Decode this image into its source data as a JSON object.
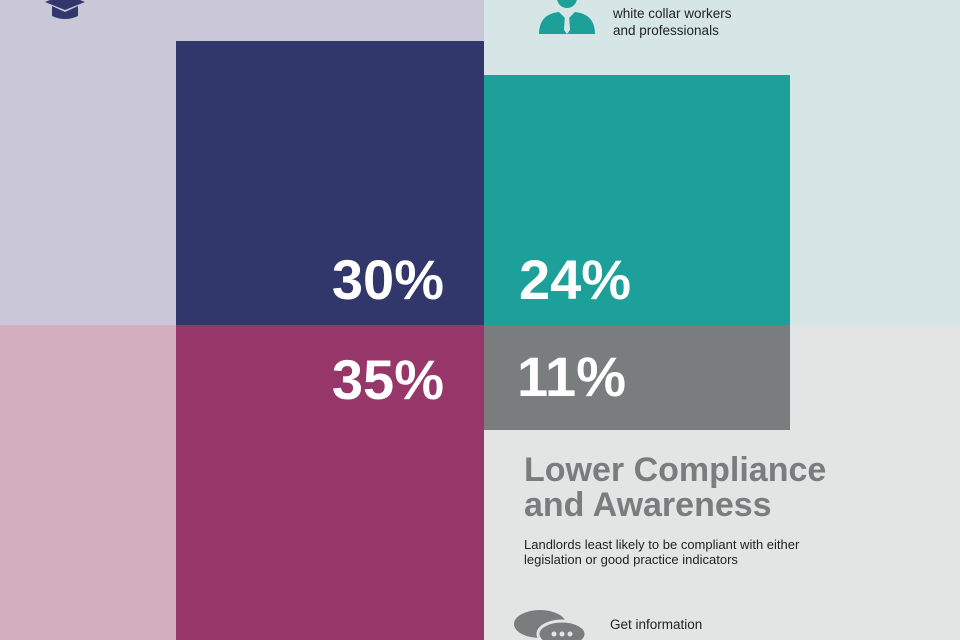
{
  "quadrants": [
    {
      "value": "30%"
    },
    {
      "value": "24%"
    },
    {
      "value": "35%"
    },
    {
      "value": "11%"
    }
  ],
  "top_right_caption": [
    "white collar workers",
    "and professionals"
  ],
  "bottom_right": {
    "heading_lines": [
      "Lower Compliance",
      "and Awareness"
    ],
    "body_lines": [
      "Landlords least likely to be compliant with either",
      "legislation or good practice indicators"
    ],
    "info_lines": [
      "Get information"
    ]
  }
}
